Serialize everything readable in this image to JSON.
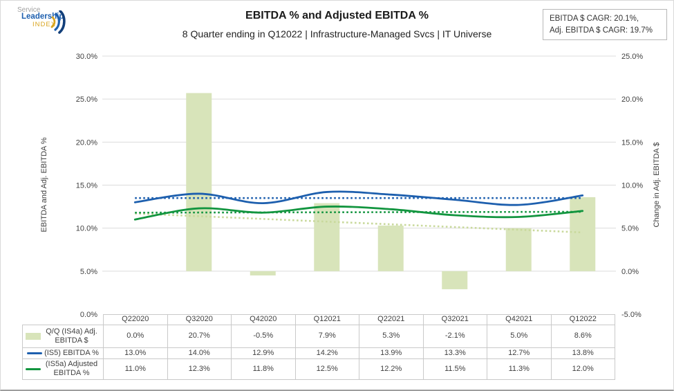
{
  "logo": {
    "line1": "Service",
    "line2": "Leadership",
    "line3": "INDEX"
  },
  "header": {
    "title": "EBITDA % and Adjusted EBITDA %",
    "subtitle": "8 Quarter ending in Q12022 | Infrastructure-Managed Svcs | IT Universe"
  },
  "cagr_box": {
    "line1": "EBITDA $ CAGR: 20.1%,",
    "line2": "Adj. EBITDA $ CAGR: 19.7%"
  },
  "chart_data": {
    "type": "combo",
    "categories": [
      "Q22020",
      "Q32020",
      "Q42020",
      "Q12021",
      "Q22021",
      "Q32021",
      "Q42021",
      "Q12022"
    ],
    "series": [
      {
        "name": "Q/Q (IS4a) Adj. EBITDA $",
        "type": "bar",
        "axis": "right",
        "color": "#d8e4ba",
        "values": [
          0.0,
          20.7,
          -0.5,
          7.9,
          5.3,
          -2.1,
          5.0,
          8.6
        ]
      },
      {
        "name": "(IS5) EBITDA %",
        "type": "line",
        "axis": "left",
        "color": "#1d5fae",
        "values": [
          13.0,
          14.0,
          12.9,
          14.2,
          13.9,
          13.3,
          12.7,
          13.8
        ]
      },
      {
        "name": "(IS5a) Adjusted EBITDA %",
        "type": "line",
        "axis": "left",
        "color": "#12953f",
        "values": [
          11.0,
          12.3,
          11.8,
          12.5,
          12.2,
          11.5,
          11.3,
          12.0
        ]
      }
    ],
    "trendlines": [
      {
        "for": "Q/Q (IS4a) Adj. EBITDA $",
        "axis": "right",
        "color": "#c9d99c",
        "start": 6.7,
        "end": 4.5
      },
      {
        "for": "(IS5) EBITDA %",
        "axis": "left",
        "color": "#1d5fae",
        "start": 13.5,
        "end": 13.5
      },
      {
        "for": "(IS5a) Adjusted EBITDA %",
        "axis": "left",
        "color": "#12953f",
        "start": 11.8,
        "end": 11.9
      }
    ],
    "left_axis": {
      "title": "EBITDA and Adj. EBITDA %",
      "min": 0,
      "max": 30,
      "step": 5,
      "tick_labels": [
        "30.0%",
        "25.0%",
        "20.0%",
        "15.0%",
        "10.0%",
        "5.0%",
        "0.0%"
      ]
    },
    "right_axis": {
      "title": "Change in Adj. EBITDA $",
      "min": -5,
      "max": 25,
      "step": 5,
      "tick_labels": [
        "25.0%",
        "20.0%",
        "15.0%",
        "10.0%",
        "5.0%",
        "0.0%",
        "-5.0%"
      ]
    },
    "grid": true,
    "legend_position": "data-table-left",
    "table": {
      "row_labels": [
        "Q/Q (IS4a) Adj. EBITDA $",
        "(IS5) EBITDA %",
        "(IS5a) Adjusted EBITDA %"
      ],
      "cell_values": [
        [
          "0.0%",
          "20.7%",
          "-0.5%",
          "7.9%",
          "5.3%",
          "-2.1%",
          "5.0%",
          "8.6%"
        ],
        [
          "13.0%",
          "14.0%",
          "12.9%",
          "14.2%",
          "13.9%",
          "13.3%",
          "12.7%",
          "13.8%"
        ],
        [
          "11.0%",
          "12.3%",
          "11.8%",
          "12.5%",
          "12.2%",
          "11.5%",
          "11.3%",
          "12.0%"
        ]
      ]
    }
  }
}
